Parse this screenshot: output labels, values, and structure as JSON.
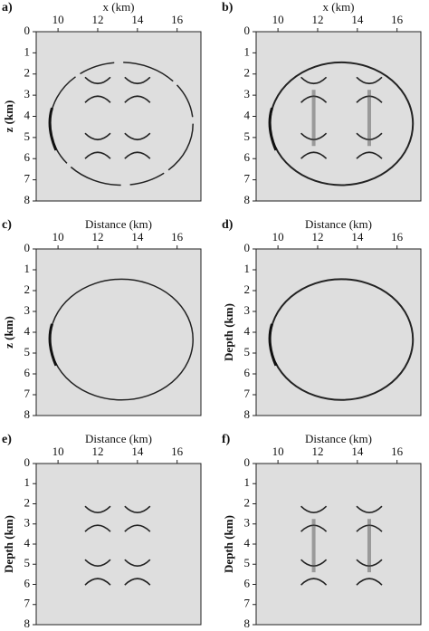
{
  "panels": [
    {
      "label": "a)",
      "x_label": "x (km)",
      "y_label": "z (km)",
      "xlim": [
        8.9,
        17.2
      ],
      "ylim": [
        0,
        8
      ],
      "xticks": [
        10,
        12,
        14,
        16
      ],
      "yticks": [
        0,
        1,
        2,
        3,
        4,
        5,
        6,
        7,
        8
      ]
    },
    {
      "label": "b)",
      "x_label": "x (km)",
      "xlim": [
        8.9,
        17.2
      ],
      "ylim": [
        0,
        8
      ],
      "xticks": [
        10,
        12,
        14,
        16
      ],
      "yticks": [
        0,
        1,
        2,
        3,
        4,
        5,
        6,
        7,
        8
      ]
    },
    {
      "label": "c)",
      "x_label": "Distance (km)",
      "y_label": "z (km)",
      "xlim": [
        8.9,
        17.2
      ],
      "ylim": [
        0,
        8
      ],
      "xticks": [
        10,
        12,
        14,
        16
      ],
      "yticks": [
        0,
        1,
        2,
        3,
        4,
        5,
        6,
        7,
        8
      ]
    },
    {
      "label": "d)",
      "x_label": "Distance (km)",
      "y_label": "Depth (km)",
      "xlim": [
        8.9,
        17.2
      ],
      "ylim": [
        0,
        8
      ],
      "xticks": [
        10,
        12,
        14,
        16
      ],
      "yticks": [
        0,
        1,
        2,
        3,
        4,
        5,
        6,
        7,
        8
      ]
    },
    {
      "label": "e)",
      "x_label": "Distance (km)",
      "y_label": "Depth (km)",
      "xlim": [
        8.9,
        17.2
      ],
      "ylim": [
        0,
        8
      ],
      "xticks": [
        10,
        12,
        14,
        16
      ],
      "yticks": [
        0,
        1,
        2,
        3,
        4,
        5,
        6,
        7,
        8
      ]
    },
    {
      "label": "f)",
      "x_label": "Distance (km)",
      "y_label": "Depth (km)",
      "xlim": [
        8.9,
        17.2
      ],
      "ylim": [
        0,
        8
      ],
      "xticks": [
        10,
        12,
        14,
        16
      ],
      "yticks": [
        0,
        1,
        2,
        3,
        4,
        5,
        6,
        7,
        8
      ]
    }
  ]
}
